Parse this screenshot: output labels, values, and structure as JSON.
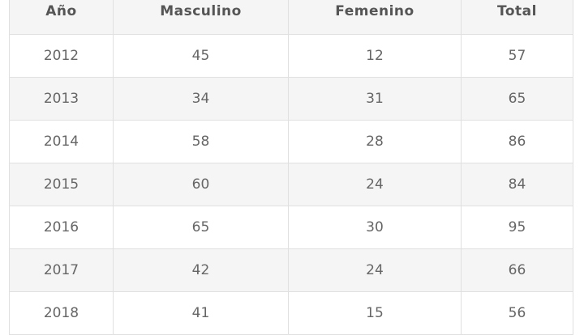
{
  "table": {
    "headers": [
      "Año",
      "Masculino",
      "Femenino",
      "Total"
    ],
    "rows": [
      [
        "2012",
        "45",
        "12",
        "57"
      ],
      [
        "2013",
        "34",
        "31",
        "65"
      ],
      [
        "2014",
        "58",
        "28",
        "86"
      ],
      [
        "2015",
        "60",
        "24",
        "84"
      ],
      [
        "2016",
        "65",
        "30",
        "95"
      ],
      [
        "2017",
        "42",
        "24",
        "66"
      ],
      [
        "2018",
        "41",
        "15",
        "56"
      ]
    ]
  }
}
